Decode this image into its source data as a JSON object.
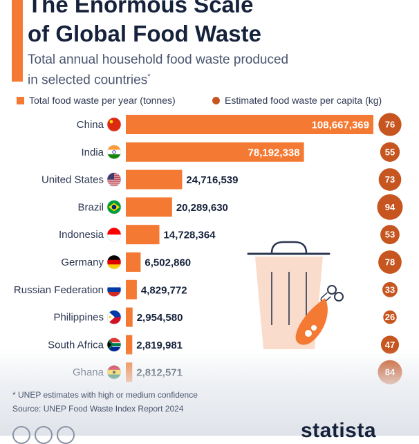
{
  "header": {
    "title_line1": "The Enormous Scale",
    "title_line2": "of Global Food Waste",
    "subtitle_line1": "Total annual household food waste produced",
    "subtitle_line2": "in selected countries",
    "subtitle_mark": "*"
  },
  "legend": {
    "bars": "Total food waste per year (tonnes)",
    "circles": "Estimated food waste per capita (kg)"
  },
  "colors": {
    "bar": "#f47a33",
    "circle": "#c65520",
    "circle_text": "#ffffff"
  },
  "icons": [
    "trash-can-icon",
    "chicken-drumstick-icon"
  ],
  "chart_data": {
    "type": "bar",
    "orientation": "horizontal",
    "title": "The Enormous Scale of Global Food Waste",
    "categories": [
      "China",
      "India",
      "United States",
      "Brazil",
      "Indonesia",
      "Germany",
      "Russian Federation",
      "Philippines",
      "South Africa",
      "Ghana"
    ],
    "series": [
      {
        "name": "Total food waste per year (tonnes)",
        "values": [
          108667369,
          78192338,
          24716539,
          20289630,
          14728364,
          6502860,
          4829772,
          2954580,
          2819981,
          2812571
        ],
        "labels": [
          "108,667,369",
          "78,192,338",
          "24,716,539",
          "20,289,630",
          "14,728,364",
          "6,502,860",
          "4,829,772",
          "2,954,580",
          "2,819,981",
          "2,812,571"
        ]
      },
      {
        "name": "Estimated food waste per capita (kg)",
        "values": [
          76,
          55,
          73,
          94,
          53,
          78,
          33,
          26,
          47,
          84
        ],
        "labels": [
          "76",
          "55",
          "73",
          "94",
          "53",
          "78",
          "33",
          "26",
          "47",
          "84"
        ]
      }
    ],
    "legend_position": "top",
    "grid": false
  },
  "footer": {
    "footnote": "* UNEP estimates with high or medium confidence",
    "source": "Source: UNEP Food Waste Index Report 2024",
    "brand": "statista"
  }
}
